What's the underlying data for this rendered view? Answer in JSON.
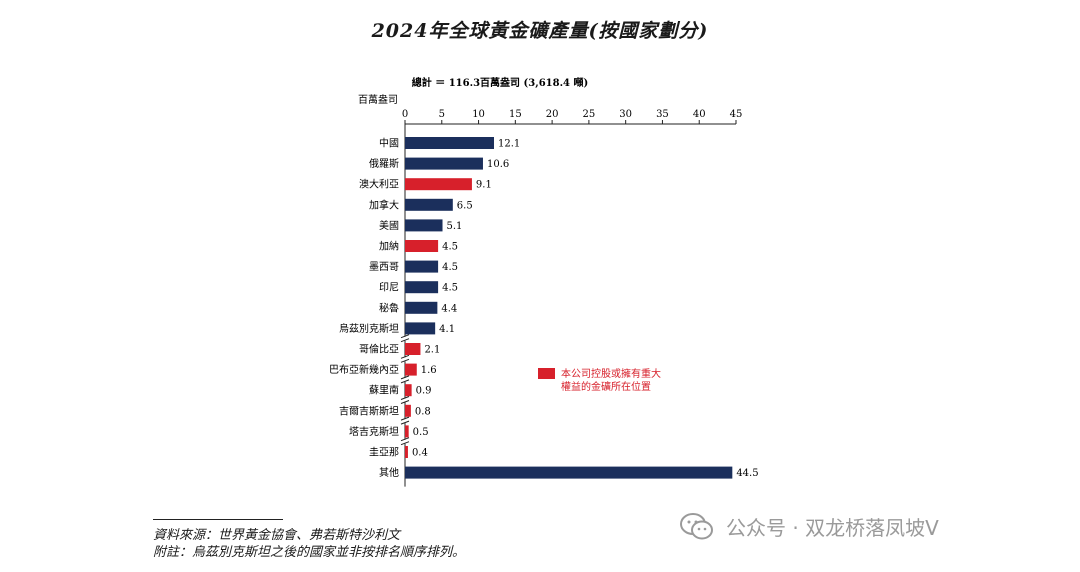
{
  "title": "2024年全球黃金礦產量(按國家劃分)",
  "chart_data": {
    "type": "bar",
    "orientation": "horizontal",
    "total_label": "總計 ＝ 116.3百萬盎司 (3,618.4 噸)",
    "unit_label": "百萬盎司",
    "xlim": [
      0,
      45
    ],
    "ticks": [
      0,
      5,
      10,
      15,
      20,
      25,
      30,
      35,
      40,
      45
    ],
    "categories": [
      "中國",
      "俄羅斯",
      "澳大利亞",
      "加拿大",
      "美國",
      "加納",
      "墨西哥",
      "印尼",
      "秘魯",
      "烏茲別克斯坦",
      "哥倫比亞",
      "巴布亞新幾內亞",
      "蘇里南",
      "吉爾吉斯斯坦",
      "塔吉克斯坦",
      "圭亞那",
      "其他"
    ],
    "values": [
      12.1,
      10.6,
      9.1,
      6.5,
      5.1,
      4.5,
      4.5,
      4.5,
      4.4,
      4.1,
      2.1,
      1.6,
      0.9,
      0.8,
      0.5,
      0.4,
      44.5
    ],
    "value_labels": [
      "12.1",
      "10.6",
      "9.1",
      "6.5",
      "5.1",
      "4.5",
      "4.5",
      "4.5",
      "4.4",
      "4.1",
      "2.1",
      "1.6",
      "0.9",
      "0.8",
      "0.5",
      "0.4",
      "44.5"
    ],
    "highlighted": [
      false,
      false,
      true,
      false,
      false,
      true,
      false,
      false,
      false,
      false,
      true,
      true,
      true,
      true,
      true,
      true,
      false
    ],
    "colors": {
      "default": "#1b2f5c",
      "highlight": "#d7202b"
    },
    "legend": {
      "line1": "本公司控股或擁有重大",
      "line2": "權益的金礦所在位置",
      "color": "#d7202b"
    }
  },
  "footer": {
    "source": "資料來源：世界黃金協會、弗若斯特沙利文",
    "note": "附註：烏茲別克斯坦之後的國家並非按排名順序排列。"
  },
  "watermark": {
    "text": "公众号 · 双龙桥落凤坡V",
    "icon": "wechat-icon"
  }
}
